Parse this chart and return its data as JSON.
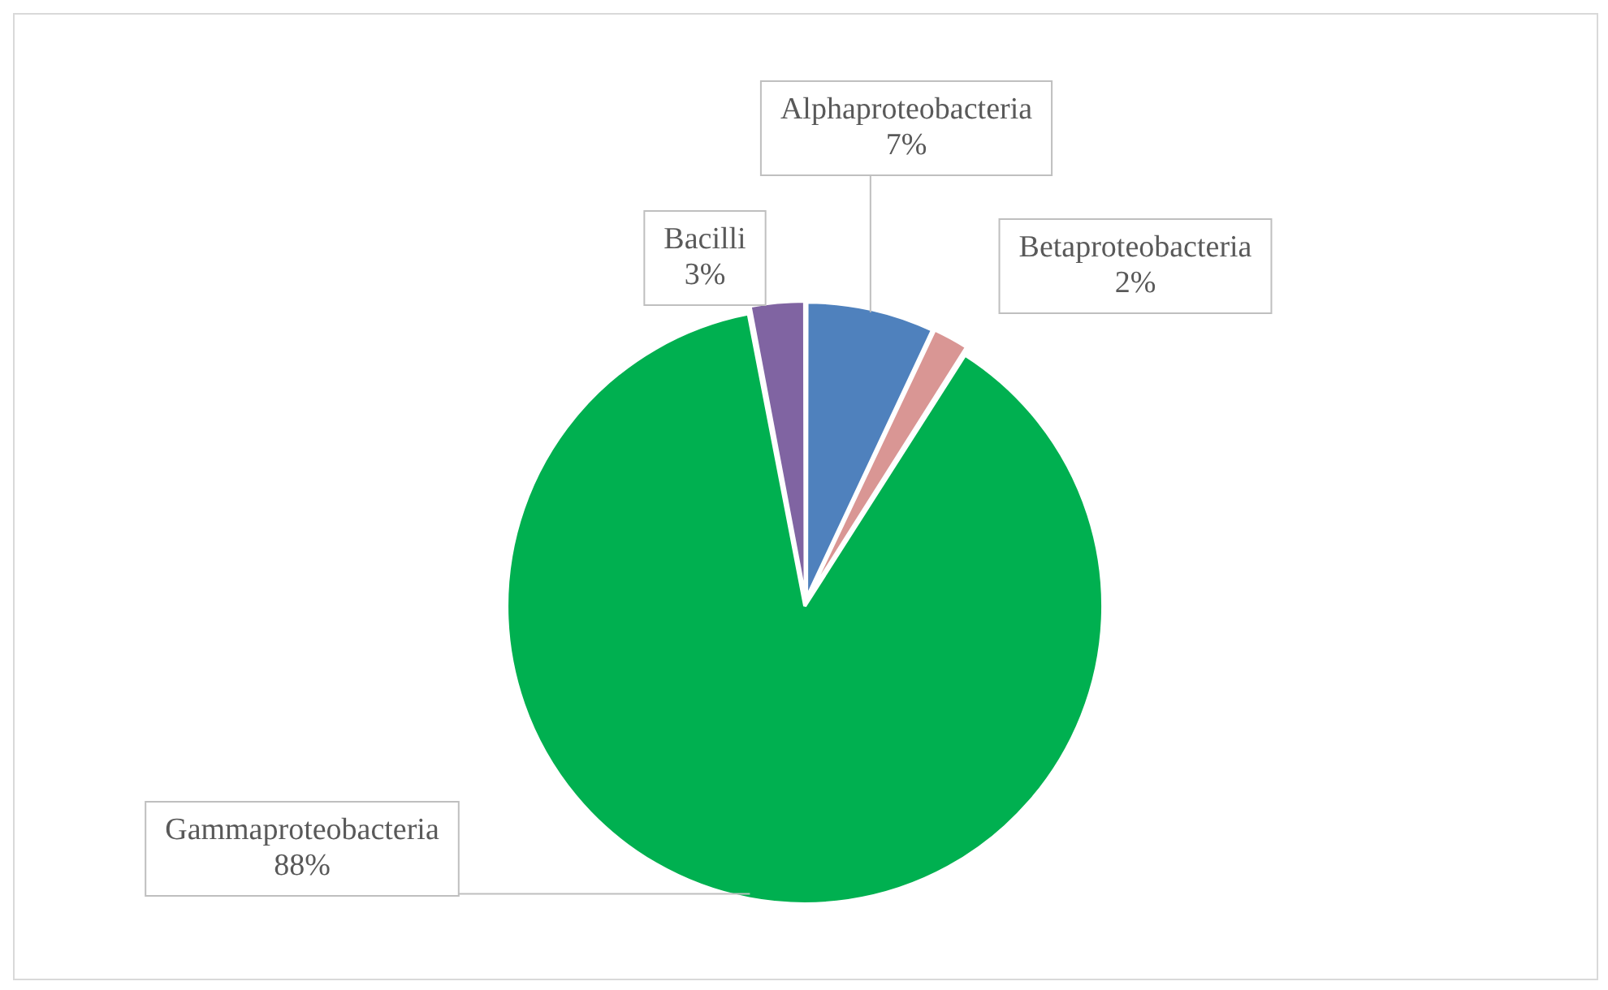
{
  "chart_data": {
    "type": "pie",
    "categories": [
      "Alphaproteobacteria",
      "Betaproteobacteria",
      "Gammaproteobacteria",
      "Bacilli"
    ],
    "values": [
      7,
      2,
      88,
      3
    ],
    "colors": [
      "#4f81bd",
      "#d99694",
      "#00b050",
      "#8064a2"
    ],
    "value_labels": [
      "7%",
      "2%",
      "88%",
      "3%"
    ],
    "legend": false
  }
}
